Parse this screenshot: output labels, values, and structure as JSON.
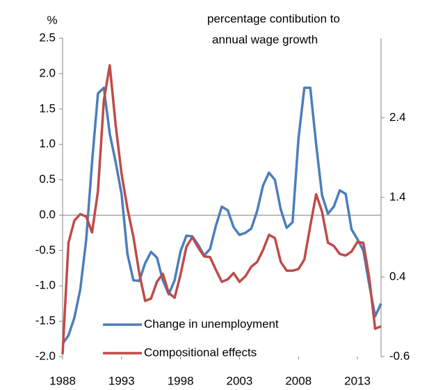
{
  "chart_data": {
    "type": "line",
    "ylabel": "%",
    "y2label": [
      "percentage contibution to",
      "annual wage growth"
    ],
    "x": [
      1988,
      1988.5,
      1989,
      1989.5,
      1990,
      1990.5,
      1991,
      1991.5,
      1992,
      1992.5,
      1993,
      1993.5,
      1994,
      1994.5,
      1995,
      1995.5,
      1996,
      1996.5,
      1997,
      1997.5,
      1998,
      1998.5,
      1999,
      1999.5,
      2000,
      2000.5,
      2001,
      2001.5,
      2002,
      2002.5,
      2003,
      2003.5,
      2004,
      2004.5,
      2005,
      2005.5,
      2006,
      2006.5,
      2007,
      2007.5,
      2008,
      2008.5,
      2009,
      2009.5,
      2010,
      2010.5,
      2011,
      2011.5,
      2012,
      2012.5,
      2013,
      2013.5,
      2014,
      2014.5,
      2015
    ],
    "series": [
      {
        "name": "Change in unemployment",
        "color": "#4a7ebb",
        "axis": "y",
        "values": [
          -1.82,
          -1.7,
          -1.45,
          -1.05,
          -0.35,
          0.75,
          1.72,
          1.8,
          1.15,
          0.75,
          0.3,
          -0.55,
          -0.92,
          -0.93,
          -0.68,
          -0.52,
          -0.6,
          -0.92,
          -1.12,
          -0.92,
          -0.51,
          -0.29,
          -0.3,
          -0.42,
          -0.57,
          -0.48,
          -0.15,
          0.12,
          0.07,
          -0.17,
          -0.28,
          -0.25,
          -0.19,
          0.06,
          0.42,
          0.6,
          0.5,
          0.08,
          -0.18,
          -0.1,
          1.08,
          1.8,
          1.8,
          1.0,
          0.28,
          0.02,
          0.12,
          0.35,
          0.3,
          -0.2,
          -0.34,
          -0.5,
          -0.98,
          -1.43,
          -1.25
        ]
      },
      {
        "name": "Compositional effects",
        "color": "#be4b48",
        "axis": "y2",
        "values": [
          -0.57,
          0.83,
          1.11,
          1.19,
          1.16,
          0.96,
          1.48,
          2.62,
          3.06,
          2.31,
          1.7,
          1.26,
          0.91,
          0.45,
          0.1,
          0.13,
          0.34,
          0.44,
          0.2,
          0.14,
          0.43,
          0.78,
          0.9,
          0.77,
          0.66,
          0.65,
          0.49,
          0.34,
          0.37,
          0.45,
          0.34,
          0.41,
          0.53,
          0.59,
          0.74,
          0.93,
          0.89,
          0.59,
          0.48,
          0.48,
          0.5,
          0.62,
          1.04,
          1.44,
          1.22,
          0.83,
          0.79,
          0.69,
          0.67,
          0.72,
          0.84,
          0.83,
          0.39,
          -0.25,
          -0.22
        ]
      }
    ],
    "xlim": [
      1988,
      2015
    ],
    "xticks": [
      1988,
      1993,
      1998,
      2003,
      2008,
      2013
    ],
    "ylim": [
      -2,
      2.5
    ],
    "yticks": [
      {
        "value": -2,
        "label": "-2.0"
      },
      -1.5,
      {
        "value": -1,
        "label": "-1.0"
      },
      -0.5,
      {
        "value": 0,
        "label": "0.0"
      },
      0.5,
      {
        "value": 1,
        "label": "1.0"
      },
      1.5,
      {
        "value": 2,
        "label": "2.0"
      },
      2.5
    ],
    "y2lim": [
      -0.6,
      3.4
    ],
    "y2ticks": [
      -0.6,
      0.4,
      1.4,
      2.4
    ],
    "legend": "lower-center"
  }
}
